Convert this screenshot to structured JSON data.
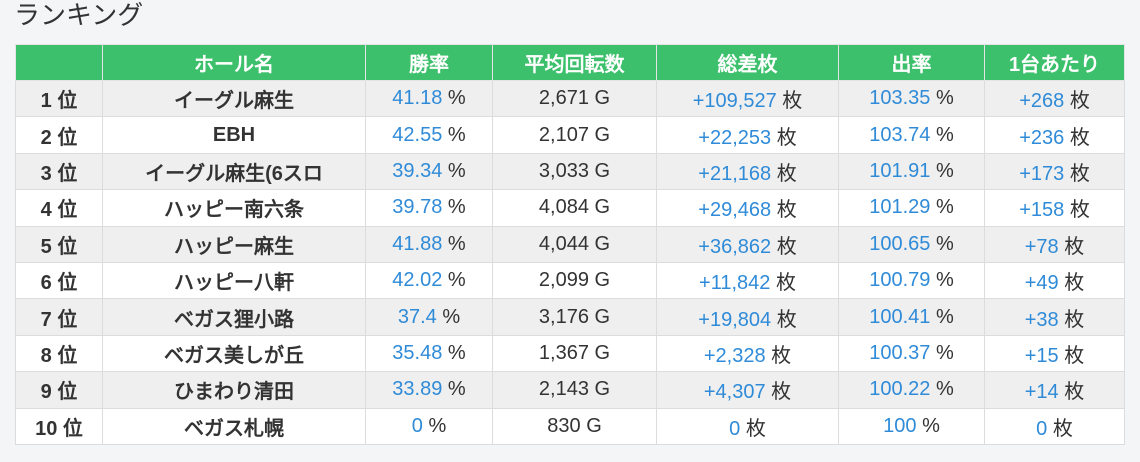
{
  "page": {
    "title": "ランキング"
  },
  "colors": {
    "header_bg": "#3dc06c",
    "value_blue": "#2f8bd8",
    "stripe_bg": "#efefef",
    "page_bg": "#f4f5f7"
  },
  "table": {
    "headers": {
      "hall": "ホール名",
      "win_rate": "勝率",
      "avg_spins": "平均回転数",
      "total_diff": "総差枚",
      "payout": "出率",
      "per_machine": "1台あたり"
    },
    "units": {
      "rank": "位",
      "win_rate": "%",
      "avg_spins": "G",
      "total_diff": "枚",
      "payout": "%",
      "per_machine": "枚"
    },
    "rows": [
      {
        "rank": "1",
        "hall": "イーグル麻生",
        "win_rate": "41.18",
        "avg_spins": "2,671",
        "total_diff": "+109,527",
        "payout": "103.35",
        "per_machine": "+268"
      },
      {
        "rank": "2",
        "hall": "EBH",
        "win_rate": "42.55",
        "avg_spins": "2,107",
        "total_diff": "+22,253",
        "payout": "103.74",
        "per_machine": "+236"
      },
      {
        "rank": "3",
        "hall": "イーグル麻生(6スロ",
        "win_rate": "39.34",
        "avg_spins": "3,033",
        "total_diff": "+21,168",
        "payout": "101.91",
        "per_machine": "+173"
      },
      {
        "rank": "4",
        "hall": "ハッピー南六条",
        "win_rate": "39.78",
        "avg_spins": "4,084",
        "total_diff": "+29,468",
        "payout": "101.29",
        "per_machine": "+158"
      },
      {
        "rank": "5",
        "hall": "ハッピー麻生",
        "win_rate": "41.88",
        "avg_spins": "4,044",
        "total_diff": "+36,862",
        "payout": "100.65",
        "per_machine": "+78"
      },
      {
        "rank": "6",
        "hall": "ハッピー八軒",
        "win_rate": "42.02",
        "avg_spins": "2,099",
        "total_diff": "+11,842",
        "payout": "100.79",
        "per_machine": "+49"
      },
      {
        "rank": "7",
        "hall": "ベガス狸小路",
        "win_rate": "37.4",
        "avg_spins": "3,176",
        "total_diff": "+19,804",
        "payout": "100.41",
        "per_machine": "+38"
      },
      {
        "rank": "8",
        "hall": "ベガス美しが丘",
        "win_rate": "35.48",
        "avg_spins": "1,367",
        "total_diff": "+2,328",
        "payout": "100.37",
        "per_machine": "+15"
      },
      {
        "rank": "9",
        "hall": "ひまわり清田",
        "win_rate": "33.89",
        "avg_spins": "2,143",
        "total_diff": "+4,307",
        "payout": "100.22",
        "per_machine": "+14"
      },
      {
        "rank": "10",
        "hall": "ベガス札幌",
        "win_rate": "0",
        "avg_spins": "830",
        "total_diff": "0",
        "payout": "100",
        "per_machine": "0"
      }
    ]
  }
}
